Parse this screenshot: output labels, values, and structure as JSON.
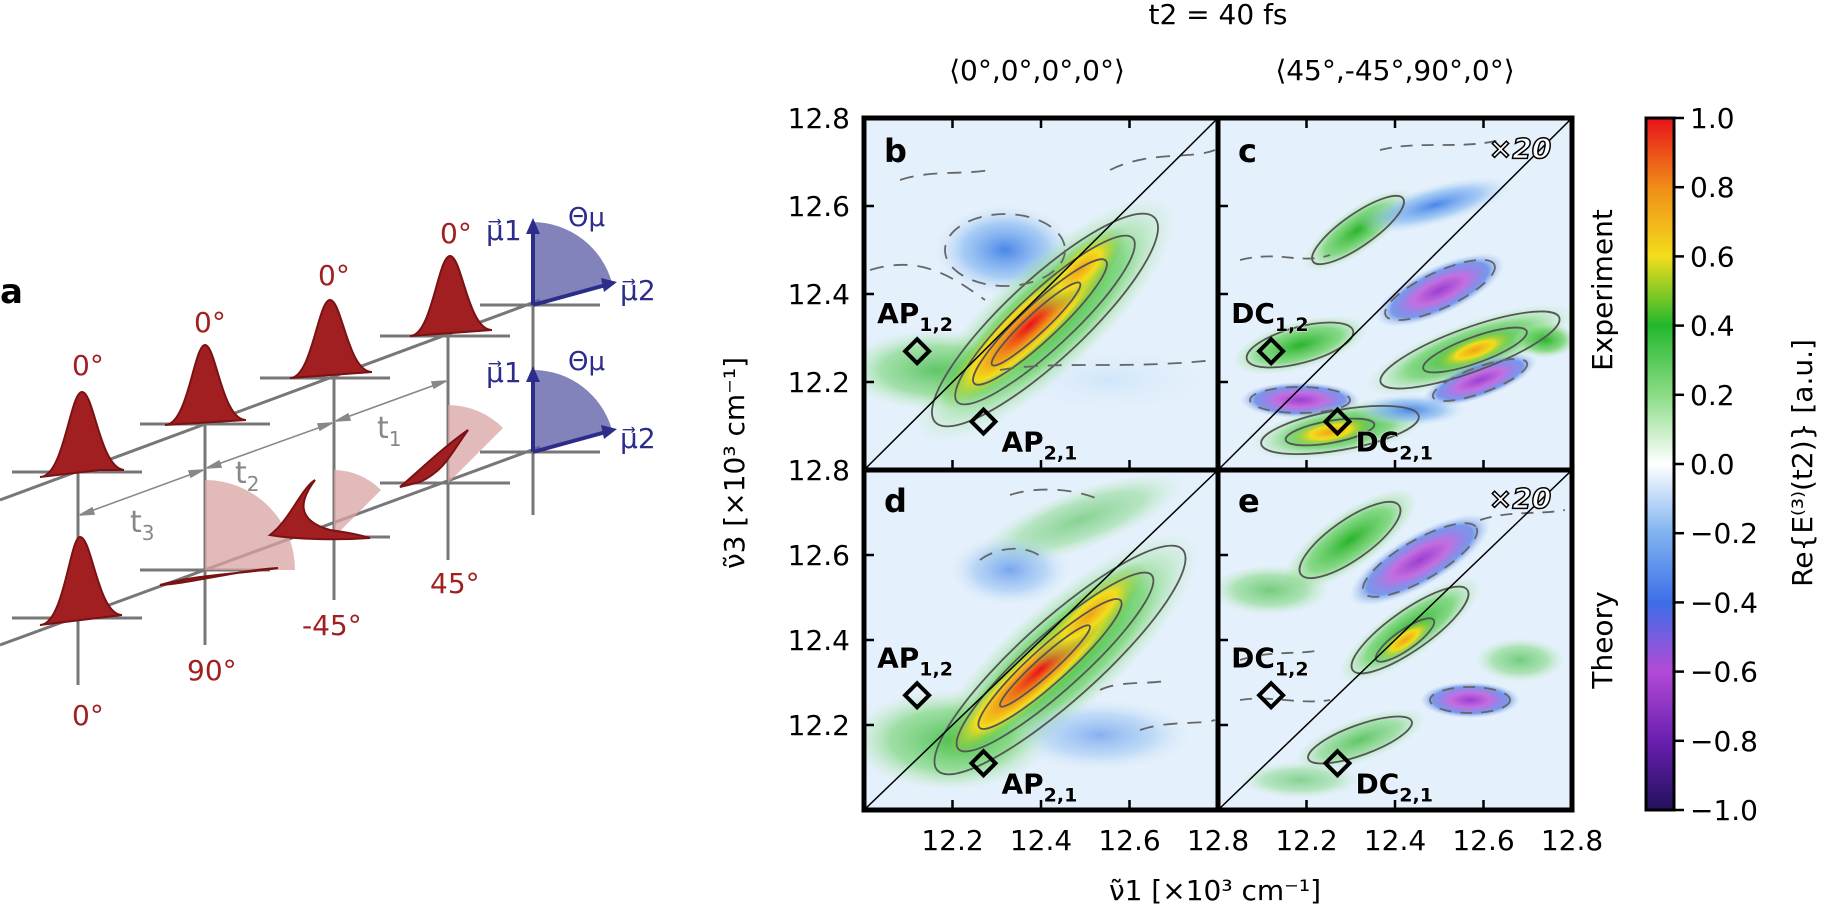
{
  "figure": {
    "panel_a": {
      "label": "a",
      "pulse_angles_top": [
        "0°",
        "0°",
        "0°",
        "0°"
      ],
      "pulse_angles_bottom": [
        "0°",
        "90°",
        "-45°",
        "45°"
      ],
      "delays": [
        "t3",
        "t2",
        "t1"
      ],
      "dipoles": {
        "mu1": "μ⃗1",
        "mu2": "μ⃗2",
        "theta": "Θμ"
      }
    },
    "title": "t2 = 40 fs",
    "column_titles": [
      "⟨0°,0°,0°,0°⟩",
      "⟨45°,-45°,90°,0°⟩"
    ],
    "row_titles": [
      "Experiment",
      "Theory"
    ],
    "panels": [
      {
        "label": "b",
        "scale": "",
        "peaks": [
          "AP1,2",
          "AP2,1"
        ]
      },
      {
        "label": "c",
        "scale": "×20",
        "peaks": [
          "DC1,2",
          "DC2,1"
        ]
      },
      {
        "label": "d",
        "scale": "",
        "peaks": [
          "AP1,2",
          "AP2,1"
        ]
      },
      {
        "label": "e",
        "scale": "×20",
        "peaks": [
          "DC1,2",
          "DC2,1"
        ]
      }
    ],
    "x_axis_label": "ν̃1 [×10³ cm⁻¹]",
    "y_axis_label": "ν̃3 [×10³ cm⁻¹]",
    "x_ticks": [
      "12.2",
      "12.4",
      "12.6",
      "12.8",
      "12.2",
      "12.4",
      "12.6",
      "12.8"
    ],
    "y_ticks_top": [
      "12.8",
      "12.6",
      "12.4",
      "12.2"
    ],
    "y_ticks_bottom": [
      "12.8",
      "12.6",
      "12.4",
      "12.2"
    ],
    "colorbar": {
      "label": "Re{E⁽³⁾(t2)} [a.u.]",
      "ticks": [
        "1.0",
        "0.8",
        "0.6",
        "0.4",
        "0.2",
        "0.0",
        "−0.2",
        "−0.4",
        "−0.6",
        "−0.8",
        "−1.0"
      ]
    }
  },
  "chart_data": {
    "type": "heatmap",
    "title": "t2 = 40 fs",
    "xlabel": "ν̃1 [×10³ cm⁻¹]",
    "ylabel": "ν̃3 [×10³ cm⁻¹]",
    "xlim": [
      12.0,
      12.8
    ],
    "ylim": [
      12.0,
      12.8
    ],
    "colorbar_range": [
      -1.0,
      1.0
    ],
    "colorbar_label": "Re{E⁽³⁾(t2)} [a.u.]",
    "panels": [
      {
        "label": "b",
        "row": "Experiment",
        "column": "⟨0°,0°,0°,0°⟩",
        "peaks": [
          {
            "name": "AP1,2",
            "x": 12.12,
            "y": 12.27
          },
          {
            "name": "AP2,1",
            "x": 12.27,
            "y": 12.11
          }
        ],
        "features": [
          {
            "x": 12.48,
            "y": 12.43,
            "value": 0.6
          },
          {
            "x": 12.28,
            "y": 12.27,
            "value": 1.0
          },
          {
            "x": 12.27,
            "y": 12.52,
            "value": -0.3
          }
        ]
      },
      {
        "label": "c",
        "row": "Experiment",
        "column": "⟨45°,-45°,90°,0°⟩",
        "scale": "×20",
        "peaks": [
          {
            "name": "DC1,2",
            "x": 12.12,
            "y": 12.27
          },
          {
            "name": "DC2,1",
            "x": 12.27,
            "y": 12.11
          }
        ],
        "features": [
          {
            "x": 12.47,
            "y": 12.27,
            "value": 0.6
          },
          {
            "x": 12.27,
            "y": 12.08,
            "value": 0.7
          },
          {
            "x": 12.37,
            "y": 12.38,
            "value": -0.6
          },
          {
            "x": 12.47,
            "y": 12.21,
            "value": -0.6
          },
          {
            "x": 12.12,
            "y": 12.26,
            "value": 0.5
          }
        ]
      },
      {
        "label": "d",
        "row": "Theory",
        "column": "⟨0°,0°,0°,0°⟩",
        "peaks": [
          {
            "name": "AP1,2",
            "x": 12.12,
            "y": 12.27
          },
          {
            "name": "AP2,1",
            "x": 12.27,
            "y": 12.11
          }
        ],
        "features": [
          {
            "x": 12.47,
            "y": 12.47,
            "value": 0.6
          },
          {
            "x": 12.28,
            "y": 12.27,
            "value": 1.0
          }
        ]
      },
      {
        "label": "e",
        "row": "Theory",
        "column": "⟨45°,-45°,90°,0°⟩",
        "scale": "×20",
        "peaks": [
          {
            "name": "DC1,2",
            "x": 12.12,
            "y": 12.27
          },
          {
            "name": "DC2,1",
            "x": 12.27,
            "y": 12.11
          }
        ],
        "features": [
          {
            "x": 12.27,
            "y": 12.58,
            "value": 0.4
          },
          {
            "x": 12.35,
            "y": 12.47,
            "value": -0.6
          },
          {
            "x": 12.42,
            "y": 12.31,
            "value": 0.4
          },
          {
            "x": 12.45,
            "y": 12.2,
            "value": -0.5
          }
        ]
      }
    ]
  }
}
